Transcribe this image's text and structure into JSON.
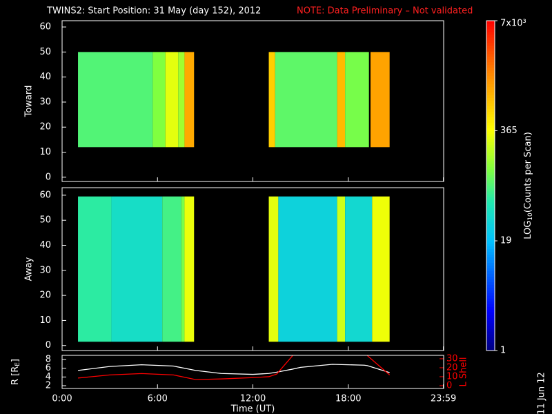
{
  "footer": "11 Jun 12",
  "chart_data": [
    {
      "type": "heatmap",
      "title": "TWINS2: Start Position: 31 May (day 152), 2012",
      "note": "NOTE: Data Preliminary – Not validated",
      "ylabel": "Toward",
      "xlim": [
        0,
        24
      ],
      "ylim": [
        -1.7,
        62.5
      ],
      "yticks": [
        0,
        10,
        20,
        30,
        40,
        50,
        60
      ],
      "band": [
        12,
        50
      ],
      "segments": [
        {
          "start": 1.0,
          "end": 5.7,
          "value": 85
        },
        {
          "start": 5.7,
          "end": 6.5,
          "value": 130
        },
        {
          "start": 6.5,
          "end": 7.3,
          "value": 300
        },
        {
          "start": 7.3,
          "end": 7.7,
          "value": 170
        },
        {
          "start": 7.7,
          "end": 8.3,
          "value": 1100
        },
        {
          "start": 13.0,
          "end": 13.4,
          "value": 700
        },
        {
          "start": 13.4,
          "end": 17.3,
          "value": 95
        },
        {
          "start": 17.3,
          "end": 17.8,
          "value": 900
        },
        {
          "start": 17.8,
          "end": 19.3,
          "value": 120
        },
        {
          "start": 19.4,
          "end": 20.6,
          "value": 1200
        }
      ]
    },
    {
      "type": "heatmap",
      "ylabel": "Away",
      "xlim": [
        0,
        24
      ],
      "ylim": [
        -2,
        63
      ],
      "yticks": [
        0,
        10,
        20,
        30,
        40,
        50,
        60
      ],
      "band": [
        1.5,
        59.5
      ],
      "segments": [
        {
          "start": 1.0,
          "end": 3.1,
          "value": 60
        },
        {
          "start": 3.1,
          "end": 6.3,
          "value": 40
        },
        {
          "start": 6.3,
          "end": 7.5,
          "value": 75
        },
        {
          "start": 7.5,
          "end": 7.7,
          "value": 120
        },
        {
          "start": 7.7,
          "end": 8.3,
          "value": 320
        },
        {
          "start": 13.0,
          "end": 13.6,
          "value": 300
        },
        {
          "start": 13.6,
          "end": 17.3,
          "value": 30
        },
        {
          "start": 17.3,
          "end": 17.8,
          "value": 250
        },
        {
          "start": 17.8,
          "end": 19.5,
          "value": 35
        },
        {
          "start": 19.5,
          "end": 20.6,
          "value": 330
        }
      ]
    },
    {
      "type": "line",
      "ylabel": [
        "R [R",
        "E",
        "]"
      ],
      "y2label": "L Shell",
      "xlabel": "Time (UT)",
      "xlim": [
        0,
        24
      ],
      "xticks": [
        {
          "value": 0,
          "label": "0:00"
        },
        {
          "value": 6,
          "label": "6:00"
        },
        {
          "value": 12,
          "label": "12:00"
        },
        {
          "value": 18,
          "label": "18:00"
        },
        {
          "value": 23.983,
          "label": "23:59"
        }
      ],
      "ylim": [
        1.37,
        8.95
      ],
      "yticks": [
        2,
        4,
        6,
        8
      ],
      "y2lim": [
        -3.1,
        33.8
      ],
      "y2ticks": [
        0,
        10,
        20,
        30
      ],
      "x": [
        1,
        3,
        5,
        7,
        8.4,
        10,
        12,
        13,
        13.5,
        14.5,
        15,
        17,
        19,
        19.2,
        20.6
      ],
      "series": [
        {
          "color": "#ffffff",
          "values": [
            5.5,
            6.4,
            6.8,
            6.5,
            5.5,
            4.8,
            4.6,
            4.8,
            5.1,
            5.8,
            6.2,
            6.9,
            6.7,
            6.6,
            5.0
          ]
        },
        {
          "color": "#ff0000",
          "axis": "y2",
          "values": [
            8.5,
            12,
            13.5,
            12,
            6.8,
            7.5,
            9,
            10,
            13,
            33.5,
            null,
            null,
            null,
            33.5,
            12
          ]
        }
      ]
    },
    {
      "type": "colorbar",
      "label": [
        "LOG",
        "10",
        "(Counts per Scan)"
      ],
      "clim": [
        1,
        7000
      ],
      "log": true,
      "ticks": [
        1,
        19,
        365,
        {
          "value": 7000,
          "label": "7x10³"
        }
      ]
    }
  ]
}
